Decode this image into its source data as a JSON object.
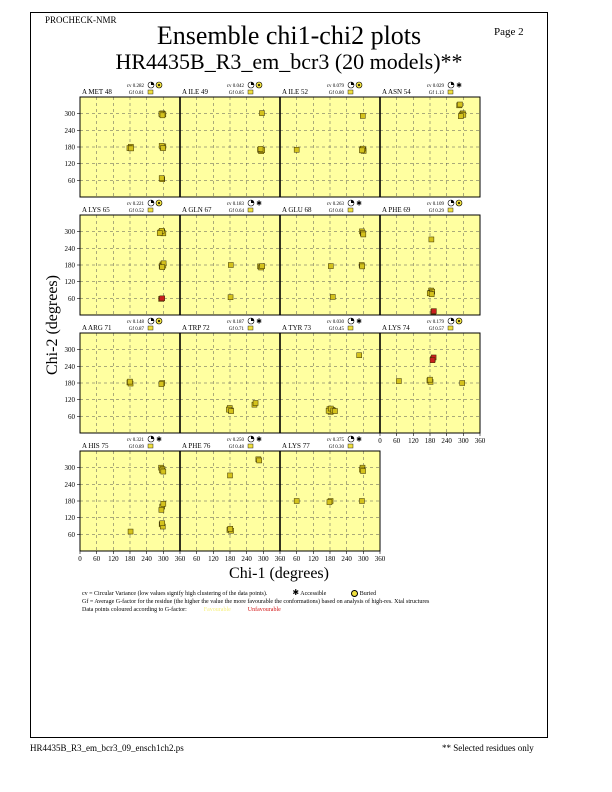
{
  "header": {
    "program": "PROCHECK-NMR",
    "page": "Page  2",
    "title": "Ensemble chi1-chi2 plots",
    "subtitle": "HR4435B_R3_em_bcr3 (20 models)**"
  },
  "axes": {
    "x_label": "Chi-1 (degrees)",
    "y_label": "Chi-2 (degrees)",
    "ticks": [
      "0",
      "60",
      "120",
      "180",
      "240",
      "300",
      "360"
    ],
    "y_ticks": [
      "60",
      "120",
      "180",
      "240",
      "300"
    ]
  },
  "legend": {
    "cv_line": "cv = Circular Variance (low values signify high clustering of the data points).",
    "accessible_label": "Accessible",
    "buried_label": "Buried",
    "gf_line": "Gf = Average G-factor for the residue (the higher the value the more favourable the conformations) based on analysis of high-res. Xtal structures",
    "colour_line": "Data points coloured according to G-factor:",
    "favourable_label": "Favourable",
    "unfavourable_label": "Unfavourable"
  },
  "footer": {
    "filename": "HR4435B_R3_em_bcr3_09_ensch1ch2.ps",
    "note": "** Selected residues only"
  },
  "colors": {
    "panel_bg": "#ffffa0",
    "point_fill": "#d4c21c",
    "point_unfav": "#c81e1e",
    "grid": "#555555"
  },
  "chart_data": {
    "type": "scatter",
    "xlim": [
      0,
      360
    ],
    "ylim": [
      0,
      360
    ],
    "panels": [
      {
        "residue": "A MET 48",
        "cv": "cv 0.282",
        "gf": "Gf 0.81",
        "access": "buried",
        "points": [
          [
            296,
            297
          ],
          [
            296,
            301
          ],
          [
            300,
            298
          ],
          [
            293,
            299
          ],
          [
            297,
            294
          ],
          [
            183,
            181
          ],
          [
            178,
            176
          ],
          [
            184,
            175
          ],
          [
            297,
            178
          ],
          [
            300,
            182
          ],
          [
            294,
            184
          ],
          [
            299,
            176
          ],
          [
            296,
            64
          ],
          [
            294,
            68
          ]
        ],
        "unfav": []
      },
      {
        "residue": "A ILE 49",
        "cv": "cv 0.042",
        "gf": "Gf 0.85",
        "access": "buried",
        "points": [
          [
            295,
            302
          ],
          [
            288,
            170
          ],
          [
            292,
            165
          ],
          [
            296,
            169
          ],
          [
            290,
            173
          ]
        ],
        "unfav": []
      },
      {
        "residue": "A ILE 52",
        "cv": "cv 0.079",
        "gf": "Gf 0.80",
        "access": "buried",
        "points": [
          [
            298,
            292
          ],
          [
            300,
            169
          ],
          [
            296,
            172
          ],
          [
            301,
            166
          ],
          [
            298,
            174
          ],
          [
            295,
            168
          ],
          [
            60,
            170
          ]
        ],
        "unfav": []
      },
      {
        "residue": "A ASN 54",
        "cv": "cv 0.029",
        "gf": "Gf 1.13",
        "access": "accessible",
        "points": [
          [
            285,
            330
          ],
          [
            288,
            333
          ],
          [
            298,
            301
          ],
          [
            294,
            297
          ],
          [
            300,
            296
          ],
          [
            291,
            291
          ]
        ],
        "unfav": []
      },
      {
        "residue": "A LYS 65",
        "cv": "cv 0.221",
        "gf": "Gf 0.52",
        "access": "buried",
        "points": [
          [
            290,
            298
          ],
          [
            296,
            301
          ],
          [
            300,
            294
          ],
          [
            294,
            303
          ],
          [
            287,
            295
          ],
          [
            297,
            182
          ],
          [
            300,
            178
          ],
          [
            294,
            176
          ],
          [
            301,
            186
          ],
          [
            296,
            172
          ]
        ],
        "unfav": [
          [
            292,
            58
          ],
          [
            296,
            60
          ]
        ]
      },
      {
        "residue": "A GLN 67",
        "cv": "cv 0.183",
        "gf": "Gf 0.64",
        "access": "accessible",
        "points": [
          [
            183,
            180
          ],
          [
            288,
            175
          ],
          [
            292,
            171
          ],
          [
            296,
            176
          ],
          [
            182,
            64
          ]
        ],
        "unfav": []
      },
      {
        "residue": "A GLU 68",
        "cv": "cv 0.263",
        "gf": "Gf 0.61",
        "access": "accessible",
        "points": [
          [
            295,
            301
          ],
          [
            298,
            295
          ],
          [
            300,
            290
          ],
          [
            294,
            180
          ],
          [
            296,
            175
          ],
          [
            183,
            176
          ],
          [
            190,
            65
          ]
        ],
        "unfav": []
      },
      {
        "residue": "A PHE 69",
        "cv": "cv 0.109",
        "gf": "Gf 0.29",
        "access": "buried",
        "points": [
          [
            184,
            88
          ],
          [
            182,
            80
          ],
          [
            188,
            84
          ],
          [
            179,
            78
          ],
          [
            186,
            75
          ],
          [
            185,
            272
          ]
        ],
        "unfav": [
          [
            192,
            12
          ],
          [
            194,
            14
          ]
        ]
      },
      {
        "residue": "A ARG 71",
        "cv": "cv 0.148",
        "gf": "Gf 0.87",
        "access": "buried",
        "points": [
          [
            178,
            182
          ],
          [
            182,
            178
          ],
          [
            180,
            185
          ],
          [
            296,
            180
          ],
          [
            293,
            176
          ]
        ],
        "unfav": []
      },
      {
        "residue": "A TRP 72",
        "cv": "cv 0.187",
        "gf": "Gf 0.71",
        "access": "accessible",
        "points": [
          [
            178,
            86
          ],
          [
            183,
            81
          ],
          [
            179,
            90
          ],
          [
            176,
            84
          ],
          [
            184,
            79
          ],
          [
            268,
            102
          ],
          [
            272,
            108
          ]
        ],
        "unfav": []
      },
      {
        "residue": "A TYR 73",
        "cv": "cv 0.030",
        "gf": "Gf 0.45",
        "access": "accessible",
        "points": [
          [
            180,
            82
          ],
          [
            184,
            78
          ],
          [
            178,
            86
          ],
          [
            186,
            80
          ],
          [
            182,
            76
          ],
          [
            188,
            83
          ],
          [
            175,
            80
          ],
          [
            183,
            88
          ],
          [
            192,
            81
          ],
          [
            198,
            79
          ],
          [
            285,
            280
          ]
        ],
        "unfav": []
      },
      {
        "residue": "A LYS 74",
        "cv": "cv 0.179",
        "gf": "Gf 0.57",
        "access": "buried",
        "points": [
          [
            68,
            187
          ],
          [
            178,
            189
          ],
          [
            182,
            184
          ],
          [
            180,
            192
          ],
          [
            296,
            180
          ]
        ],
        "unfav": [
          [
            190,
            266
          ],
          [
            193,
            272
          ],
          [
            189,
            262
          ]
        ]
      },
      {
        "residue": "A HIS 75",
        "cv": "cv 0.321",
        "gf": "Gf 0.89",
        "access": "accessible",
        "points": [
          [
            292,
            300
          ],
          [
            297,
            295
          ],
          [
            295,
            290
          ],
          [
            300,
            286
          ],
          [
            296,
            160
          ],
          [
            293,
            148
          ],
          [
            300,
            170
          ],
          [
            294,
            96
          ],
          [
            298,
            88
          ],
          [
            296,
            100
          ],
          [
            182,
            70
          ]
        ],
        "unfav": []
      },
      {
        "residue": "A PHE 76",
        "cv": "cv 0.250",
        "gf": "Gf 0.48",
        "access": "accessible",
        "points": [
          [
            282,
            330
          ],
          [
            285,
            326
          ],
          [
            180,
            272
          ],
          [
            178,
            76
          ],
          [
            184,
            73
          ],
          [
            181,
            80
          ]
        ],
        "unfav": []
      },
      {
        "residue": "A LYS 77",
        "cv": "cv 0.375",
        "gf": "Gf 0.30",
        "access": "accessible",
        "points": [
          [
            297,
            300
          ],
          [
            295,
            293
          ],
          [
            299,
            288
          ],
          [
            295,
            180
          ],
          [
            182,
            180
          ],
          [
            178,
            176
          ],
          [
            60,
            180
          ]
        ],
        "unfav": []
      }
    ]
  }
}
